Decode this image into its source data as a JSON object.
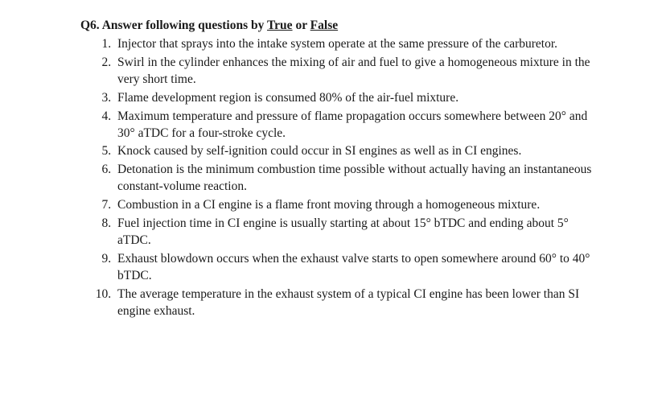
{
  "text_color": "#1a1a1a",
  "background_color": "#ffffff",
  "font_family": "Times New Roman",
  "base_fontsize": 15.5,
  "title": {
    "prefix": "Q6. Answer following questions by ",
    "word_true": "True",
    "middle": " or ",
    "word_false": "False"
  },
  "items": [
    "Injector that sprays into the intake system operate at the same pressure of the carburetor.",
    "Swirl in the cylinder enhances the mixing of air and fuel to give a homogeneous mixture in the very short time.",
    "Flame development region is consumed 80% of the air-fuel mixture.",
    "Maximum temperature and pressure of flame propagation occurs somewhere between 20° and 30° aTDC for a four-stroke cycle.",
    "Knock caused by self-ignition could occur in SI engines as well as in CI engines.",
    "Detonation is the minimum combustion time possible without actually having an instantaneous constant-volume reaction.",
    "Combustion in a CI engine is a flame front moving through a homogeneous mixture.",
    "Fuel injection time in CI engine is usually starting at about 15° bTDC and ending about 5° aTDC.",
    "Exhaust blowdown occurs when the exhaust valve starts to open somewhere around 60° to 40° bTDC.",
    "The average temperature in the exhaust system of a typical CI engine has been lower than SI engine exhaust."
  ]
}
